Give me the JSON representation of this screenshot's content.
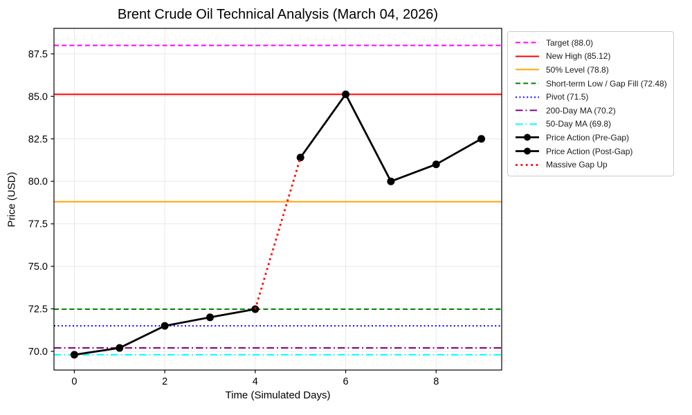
{
  "chart_data": {
    "type": "line",
    "title": "Brent Crude Oil Technical Analysis (March 04, 2026)",
    "xlabel": "Time (Simulated Days)",
    "ylabel": "Price (USD)",
    "xlim": [
      -0.45,
      9.45
    ],
    "ylim": [
      68.9,
      89.0
    ],
    "x_ticks": [
      0,
      2,
      4,
      6,
      8
    ],
    "x_tick_labels": [
      "0",
      "2",
      "4",
      "6",
      "8"
    ],
    "y_ticks": [
      70.0,
      72.5,
      75.0,
      77.5,
      80.0,
      82.5,
      85.0,
      87.5
    ],
    "y_tick_labels": [
      "70.0",
      "72.5",
      "75.0",
      "77.5",
      "80.0",
      "82.5",
      "85.0",
      "87.5"
    ],
    "grid": true,
    "grid_color": "#e8e8e8",
    "background_color": "#ffffff",
    "legend_position": "outside upper right",
    "h_lines": [
      {
        "label": "Target (88.0)",
        "value": 88.0,
        "color": "#ff00ff",
        "style": "dashed",
        "width": 2
      },
      {
        "label": "New High (85.12)",
        "value": 85.12,
        "color": "#ff0000",
        "style": "solid",
        "width": 2
      },
      {
        "label": "50% Level (78.8)",
        "value": 78.8,
        "color": "#ffa500",
        "style": "solid",
        "width": 2
      },
      {
        "label": "Short-term Low / Gap Fill (72.48)",
        "value": 72.48,
        "color": "#008000",
        "style": "dashed",
        "width": 2
      },
      {
        "label": "Pivot (71.5)",
        "value": 71.5,
        "color": "#0000ff",
        "style": "dotted",
        "width": 2
      },
      {
        "label": "200-Day MA (70.2)",
        "value": 70.2,
        "color": "#800080",
        "style": "dashdot",
        "width": 2
      },
      {
        "label": "50-Day MA (69.8)",
        "value": 69.8,
        "color": "#00ffff",
        "style": "dashdot",
        "width": 2
      }
    ],
    "series": [
      {
        "name": "Price Action (Pre-Gap)",
        "x": [
          0,
          1,
          2,
          3,
          4
        ],
        "values": [
          69.8,
          70.2,
          71.5,
          72.0,
          72.48
        ],
        "color": "#000000",
        "style": "solid",
        "width": 2.8,
        "marker": "circle"
      },
      {
        "name": "Price Action (Post-Gap)",
        "x": [
          5,
          6,
          7,
          8,
          9
        ],
        "values": [
          81.4,
          85.12,
          80.0,
          81.0,
          82.5
        ],
        "color": "#000000",
        "style": "solid",
        "width": 2.8,
        "marker": "circle"
      },
      {
        "name": "Massive Gap Up",
        "x": [
          4,
          5
        ],
        "values": [
          72.48,
          81.4
        ],
        "color": "#ff0000",
        "style": "gap-dotted",
        "width": 2.8,
        "marker": "none"
      }
    ]
  }
}
